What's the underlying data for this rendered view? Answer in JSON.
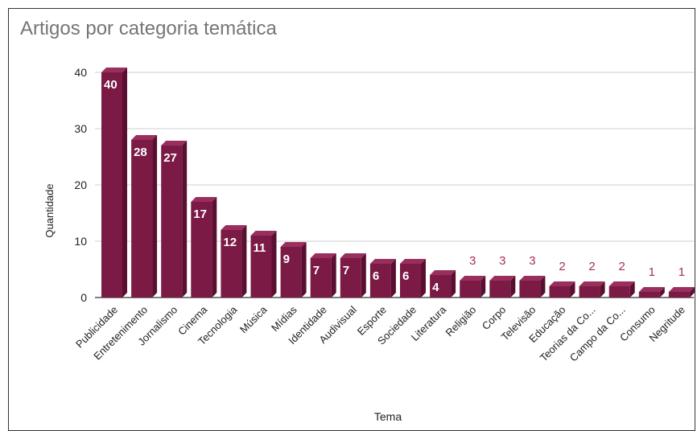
{
  "chart_data": {
    "type": "bar",
    "title": "Artigos por categoria temática",
    "xlabel": "Tema",
    "ylabel": "Quantidade",
    "ylim": [
      0,
      40
    ],
    "yticks": [
      0,
      10,
      20,
      30,
      40
    ],
    "grid": true,
    "legend": "none",
    "bar_color": "#7b1b45",
    "label_inside_color": "#ffffff",
    "label_outside_color": "#a0305e",
    "categories": [
      "Publicidade",
      "Entretenimento",
      "Jornalismo",
      "Cinema",
      "Tecnologia",
      "Música",
      "Mídias",
      "Identidade",
      "Audivisual",
      "Esporte",
      "Sociedade",
      "Literatura",
      "Religião",
      "Corpo",
      "Televisão",
      "Educação",
      "Teorias da Co...",
      "Campo da Co...",
      "Consumo",
      "Negritude"
    ],
    "values": [
      40,
      28,
      27,
      17,
      12,
      11,
      9,
      7,
      7,
      6,
      6,
      4,
      3,
      3,
      3,
      2,
      2,
      2,
      1,
      1
    ]
  }
}
